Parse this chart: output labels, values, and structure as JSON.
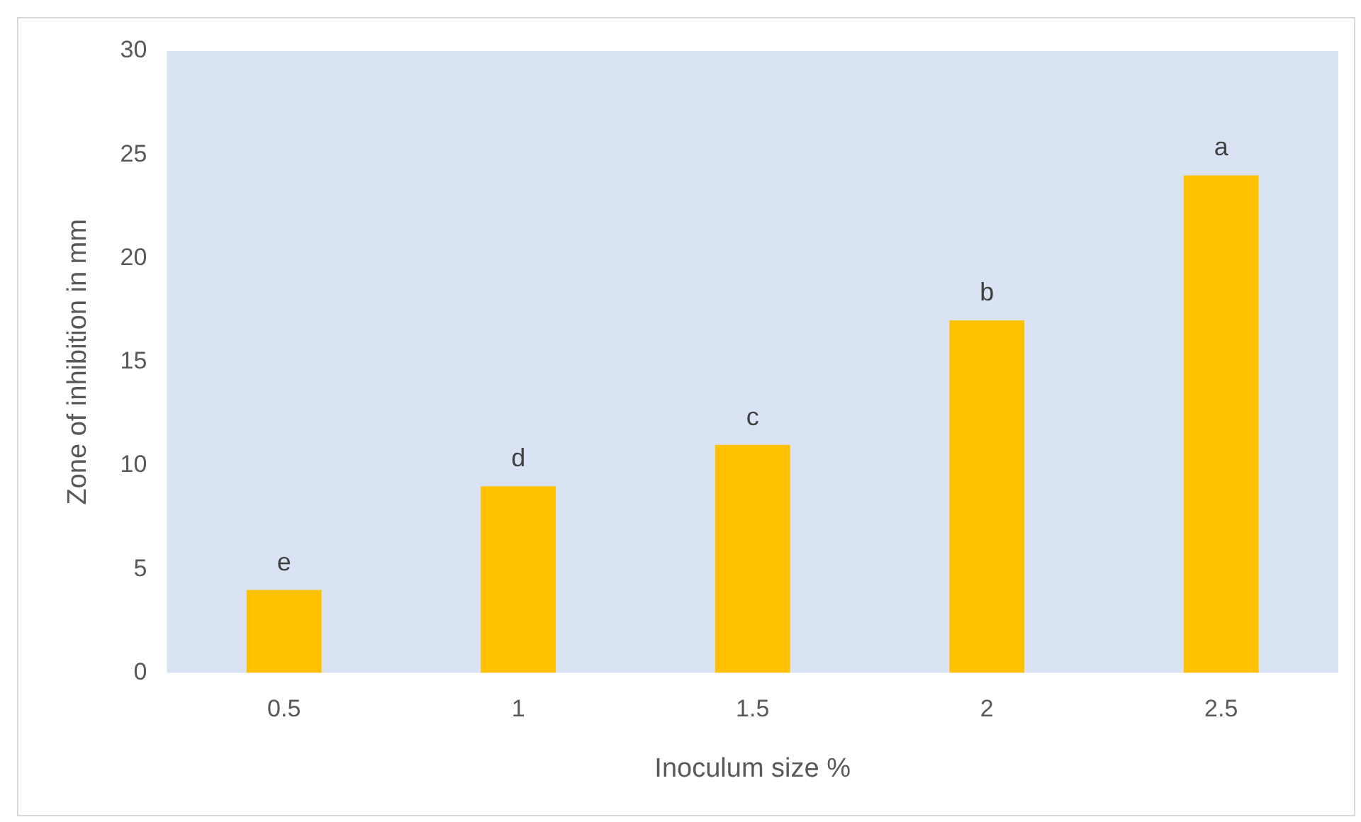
{
  "chart_data": {
    "type": "bar",
    "xlabel": "Inoculum size %",
    "ylabel": "Zone of inhibition in mm",
    "categories": [
      "0.5",
      "1",
      "1.5",
      "2",
      "2.5"
    ],
    "values": [
      4,
      9,
      11,
      17,
      24
    ],
    "value_labels": [
      "e",
      "d",
      "c",
      "b",
      "a"
    ],
    "color": "#ffc000",
    "ylim": [
      0,
      30
    ],
    "yticks": [
      0,
      5,
      10,
      15,
      20,
      25,
      30
    ],
    "grid": false,
    "legend": false
  }
}
